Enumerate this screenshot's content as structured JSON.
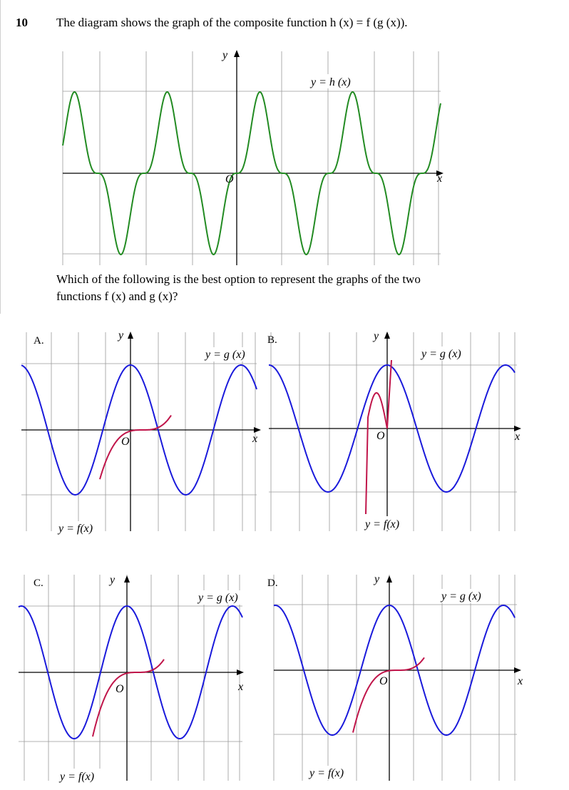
{
  "question": {
    "number": "10",
    "text": "The diagram shows the graph of the composite function h (x) = f (g (x)).",
    "prompt": "Which of the following is the best option to represent the graphs of the two functions f (x) and g (x)?"
  },
  "main_graph": {
    "curve_label": "y = h (x)",
    "axis_x": "x",
    "axis_y": "y",
    "origin": "O",
    "curve_color": "#228b22"
  },
  "options": [
    {
      "letter": "A.",
      "g_label": "y = g (x)",
      "f_label": "y = f(x)",
      "axis_x": "x",
      "axis_y": "y",
      "origin": "O"
    },
    {
      "letter": "B.",
      "g_label": "y = g (x)",
      "f_label": "y = f(x)",
      "axis_x": "x",
      "axis_y": "y",
      "origin": "O"
    },
    {
      "letter": "C.",
      "g_label": "y = g (x)",
      "f_label": "y = f(x)",
      "axis_x": "x",
      "axis_y": "y",
      "origin": "O"
    },
    {
      "letter": "D.",
      "g_label": "y = g (x)",
      "f_label": "y = f(x)",
      "axis_x": "x",
      "axis_y": "y",
      "origin": "O"
    }
  ],
  "colors": {
    "g_curve": "#1a1adb",
    "f_curve": "#c0154a",
    "h_curve": "#228b22",
    "grid": "#9a9a9a"
  }
}
